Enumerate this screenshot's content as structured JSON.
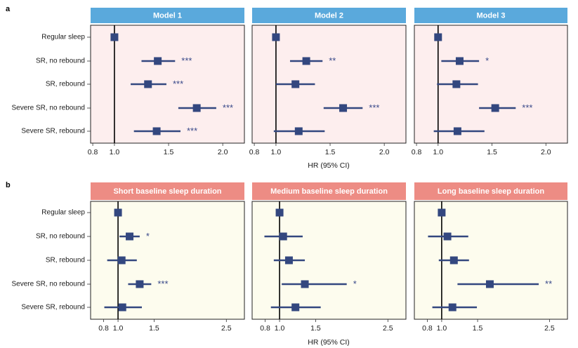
{
  "figure": {
    "x_axis_title": "HR (95% CI)",
    "colors": {
      "point": "#33477f",
      "reference_line": "#000000",
      "significance": "#3a4a8a"
    }
  },
  "chart_data": [
    {
      "type": "scatter",
      "subtype": "forest-plot",
      "panel_label": "a",
      "categories": [
        "Regular sleep",
        "SR, no rebound",
        "SR, rebound",
        "Severe SR, no rebound",
        "Severe SR, rebound"
      ],
      "xlim": [
        0.78,
        2.2
      ],
      "x_ticks": [
        0.8,
        1.0,
        1.5,
        2.0
      ],
      "x_tick_labels": [
        "0.8",
        "1.0",
        "1.5",
        "2.0"
      ],
      "reference_x": 1.0,
      "strip_fill": "#5aa9dc",
      "panel_fill": "#fdeeee",
      "series": [
        {
          "name": "Model 1",
          "hr": [
            1.0,
            1.4,
            1.31,
            1.76,
            1.39
          ],
          "lo": [
            1.0,
            1.25,
            1.15,
            1.59,
            1.18
          ],
          "hi": [
            1.0,
            1.56,
            1.48,
            1.94,
            1.61
          ],
          "sig": [
            "",
            "***",
            "***",
            "***",
            "***"
          ]
        },
        {
          "name": "Model 2",
          "hr": [
            1.0,
            1.28,
            1.18,
            1.62,
            1.21
          ],
          "lo": [
            1.0,
            1.13,
            1.0,
            1.44,
            0.98
          ],
          "hi": [
            1.0,
            1.43,
            1.36,
            1.8,
            1.45
          ],
          "sig": [
            "",
            "**",
            "",
            "***",
            ""
          ]
        },
        {
          "name": "Model 3",
          "hr": [
            1.0,
            1.2,
            1.17,
            1.53,
            1.18
          ],
          "lo": [
            1.0,
            1.03,
            0.99,
            1.38,
            0.96
          ],
          "hi": [
            1.0,
            1.38,
            1.37,
            1.72,
            1.43
          ],
          "sig": [
            "",
            "*",
            "",
            "***",
            ""
          ]
        }
      ]
    },
    {
      "type": "scatter",
      "subtype": "forest-plot",
      "panel_label": "b",
      "categories": [
        "Regular sleep",
        "SR, no rebound",
        "SR, rebound",
        "Severe SR, no rebound",
        "Severe SR, rebound"
      ],
      "xlim": [
        0.62,
        2.75
      ],
      "x_ticks": [
        0.8,
        1.0,
        1.5,
        2.5
      ],
      "x_tick_labels": [
        "0.8",
        "1.0",
        "1.5",
        "2.5"
      ],
      "reference_x": 1.0,
      "strip_fill": "#ed8c84",
      "panel_fill": "#fdfcee",
      "series": [
        {
          "name": "Short baseline sleep duration",
          "hr": [
            1.0,
            1.16,
            1.05,
            1.3,
            1.06
          ],
          "lo": [
            1.0,
            1.02,
            0.85,
            1.14,
            0.81
          ],
          "hi": [
            1.0,
            1.3,
            1.26,
            1.46,
            1.33
          ],
          "sig": [
            "",
            "*",
            "",
            "***",
            ""
          ]
        },
        {
          "name": "Medium baseline sleep duration",
          "hr": [
            1.0,
            1.05,
            1.13,
            1.35,
            1.22
          ],
          "lo": [
            1.0,
            0.79,
            0.92,
            1.03,
            0.88
          ],
          "hi": [
            1.0,
            1.32,
            1.35,
            1.93,
            1.57
          ],
          "sig": [
            "",
            "",
            "",
            "*",
            ""
          ]
        },
        {
          "name": "Long baseline sleep duration",
          "hr": [
            1.0,
            1.08,
            1.17,
            1.67,
            1.15
          ],
          "lo": [
            1.0,
            0.81,
            0.96,
            1.22,
            0.87
          ],
          "hi": [
            1.0,
            1.37,
            1.38,
            2.35,
            1.49
          ],
          "sig": [
            "",
            "",
            "",
            "**",
            ""
          ]
        }
      ]
    }
  ]
}
